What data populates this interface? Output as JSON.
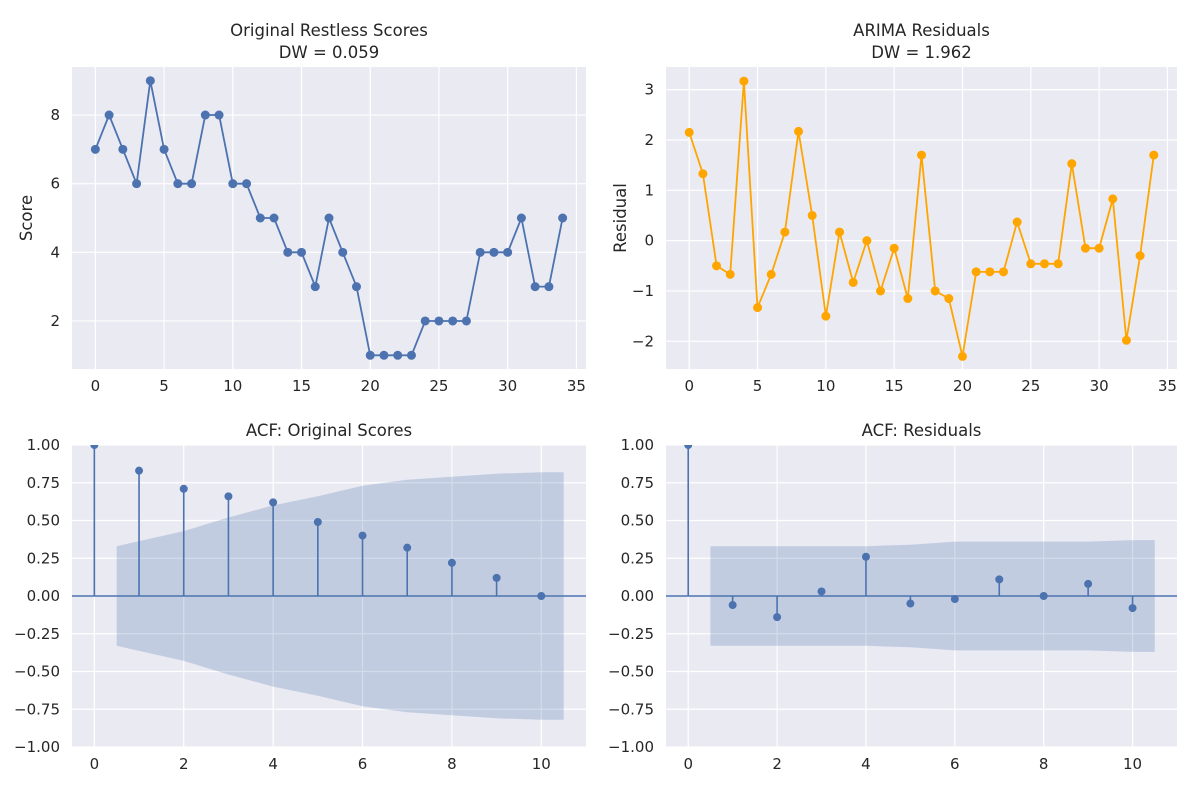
{
  "chart_data": [
    {
      "type": "line",
      "title": "Original Restless Scores",
      "subtitle": "DW = 0.059",
      "xlabel": "",
      "ylabel": "Score",
      "xlim": [
        -1.7,
        35.7
      ],
      "ylim": [
        0.6,
        9.4
      ],
      "xticks": [
        0,
        5,
        10,
        15,
        20,
        25,
        30,
        35
      ],
      "yticks": [
        2,
        4,
        6,
        8
      ],
      "grid": true,
      "color": "#4c72b0",
      "x": [
        0,
        1,
        2,
        3,
        4,
        5,
        6,
        7,
        8,
        9,
        10,
        11,
        12,
        13,
        14,
        15,
        16,
        17,
        18,
        19,
        20,
        21,
        22,
        23,
        24,
        25,
        26,
        27,
        28,
        29,
        30,
        31,
        32,
        33,
        34
      ],
      "values": [
        7,
        8,
        7,
        6,
        9,
        7,
        6,
        6,
        8,
        8,
        6,
        6,
        5,
        5,
        4,
        4,
        3,
        5,
        4,
        3,
        1,
        1,
        1,
        1,
        2,
        2,
        2,
        2,
        4,
        4,
        4,
        5,
        3,
        3,
        5
      ]
    },
    {
      "type": "line",
      "title": "ARIMA Residuals",
      "subtitle": "DW = 1.962",
      "xlabel": "",
      "ylabel": "Residual",
      "xlim": [
        -1.7,
        35.7
      ],
      "ylim": [
        -2.55,
        3.45
      ],
      "xticks": [
        0,
        5,
        10,
        15,
        20,
        25,
        30,
        35
      ],
      "yticks": [
        -2,
        -1,
        0,
        1,
        2,
        3
      ],
      "grid": true,
      "color": "#ffa500",
      "x": [
        0,
        1,
        2,
        3,
        4,
        5,
        6,
        7,
        8,
        9,
        10,
        11,
        12,
        13,
        14,
        15,
        16,
        17,
        18,
        19,
        20,
        21,
        22,
        23,
        24,
        25,
        26,
        27,
        28,
        29,
        30,
        31,
        32,
        33,
        34
      ],
      "values": [
        2.15,
        1.33,
        -0.5,
        -0.67,
        3.17,
        -1.33,
        -0.67,
        0.17,
        2.17,
        0.5,
        -1.5,
        0.17,
        -0.83,
        0.0,
        -1.0,
        -0.15,
        -1.15,
        1.7,
        -1.0,
        -1.15,
        -2.3,
        -0.62,
        -0.62,
        -0.62,
        0.37,
        -0.46,
        -0.46,
        -0.46,
        1.53,
        -0.15,
        -0.15,
        0.83,
        -1.98,
        -0.3,
        1.7
      ]
    },
    {
      "type": "stem",
      "title": "ACF: Original Scores",
      "xlabel": "",
      "ylabel": "",
      "xlim": [
        -0.5,
        11.0
      ],
      "ylim": [
        -1.0,
        1.0
      ],
      "xticks": [
        0,
        2,
        4,
        6,
        8,
        10
      ],
      "yticks": [
        -1.0,
        -0.75,
        -0.5,
        -0.25,
        0.0,
        0.25,
        0.5,
        0.75,
        1.0
      ],
      "ytick_labels": [
        "−1.00",
        "−0.75",
        "−0.50",
        "−0.25",
        "0.00",
        "0.25",
        "0.50",
        "0.75",
        "1.00"
      ],
      "grid": true,
      "color": "#4c72b0",
      "band_color": "#4c72b0",
      "x": [
        0,
        1,
        2,
        3,
        4,
        5,
        6,
        7,
        8,
        9,
        10
      ],
      "values": [
        1.0,
        0.83,
        0.71,
        0.66,
        0.62,
        0.49,
        0.4,
        0.32,
        0.22,
        0.12,
        0.0
      ],
      "confidence_band": [
        0.33,
        0.43,
        0.52,
        0.6,
        0.66,
        0.73,
        0.77,
        0.79,
        0.81,
        0.82,
        0.82
      ]
    },
    {
      "type": "stem",
      "title": "ACF: Residuals",
      "xlabel": "",
      "ylabel": "",
      "xlim": [
        -0.5,
        11.0
      ],
      "ylim": [
        -1.0,
        1.0
      ],
      "xticks": [
        0,
        2,
        4,
        6,
        8,
        10
      ],
      "yticks": [
        -1.0,
        -0.75,
        -0.5,
        -0.25,
        0.0,
        0.25,
        0.5,
        0.75,
        1.0
      ],
      "ytick_labels": [
        "−1.00",
        "−0.75",
        "−0.50",
        "−0.25",
        "0.00",
        "0.25",
        "0.50",
        "0.75",
        "1.00"
      ],
      "grid": true,
      "color": "#4c72b0",
      "band_color": "#4c72b0",
      "x": [
        0,
        1,
        2,
        3,
        4,
        5,
        6,
        7,
        8,
        9,
        10
      ],
      "values": [
        1.0,
        -0.06,
        -0.14,
        0.03,
        0.26,
        -0.05,
        -0.02,
        0.11,
        0.0,
        0.08,
        -0.08
      ],
      "confidence_band": [
        0.33,
        0.33,
        0.33,
        0.33,
        0.34,
        0.36,
        0.36,
        0.36,
        0.36,
        0.37,
        0.37
      ]
    }
  ]
}
